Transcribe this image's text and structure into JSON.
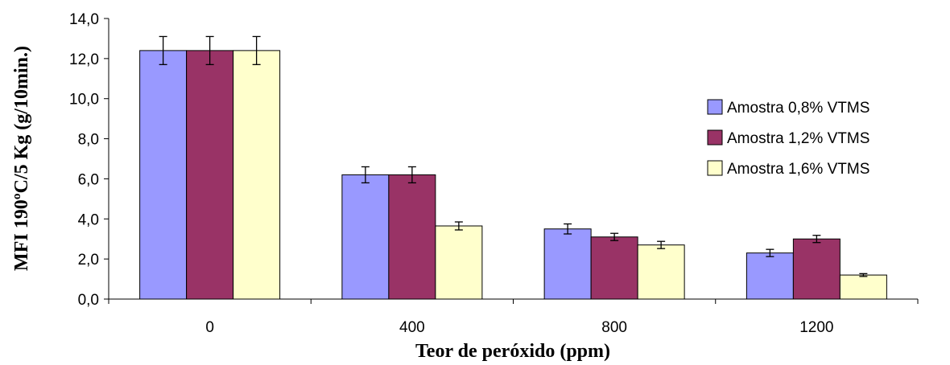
{
  "chart_data": {
    "type": "bar",
    "xlabel": "Teor de peróxido (ppm)",
    "ylabel": "MFI 190ºC/5 Kg (g/10min.)",
    "categories": [
      "0",
      "400",
      "800",
      "1200"
    ],
    "ylim": [
      0,
      14
    ],
    "yticks": [
      "0,0",
      "2,0",
      "4,0",
      "6,0",
      "8,0",
      "10,0",
      "12,0",
      "14,0"
    ],
    "ytick_values": [
      0,
      2,
      4,
      6,
      8,
      10,
      12,
      14
    ],
    "grid": false,
    "legend_position": "right",
    "series": [
      {
        "name": "Amostra 0,8% VTMS",
        "color": "#9999ff",
        "values": [
          12.4,
          6.2,
          3.5,
          2.3
        ],
        "errors": [
          0.7,
          0.4,
          0.25,
          0.18
        ]
      },
      {
        "name": "Amostra 1,2% VTMS",
        "color": "#993366",
        "values": [
          12.4,
          6.2,
          3.1,
          3.0
        ],
        "errors": [
          0.7,
          0.4,
          0.18,
          0.18
        ]
      },
      {
        "name": "Amostra 1,6% VTMS",
        "color": "#ffffcc",
        "values": [
          12.4,
          3.65,
          2.7,
          1.2
        ],
        "errors": [
          0.7,
          0.2,
          0.18,
          0.07
        ]
      }
    ]
  }
}
